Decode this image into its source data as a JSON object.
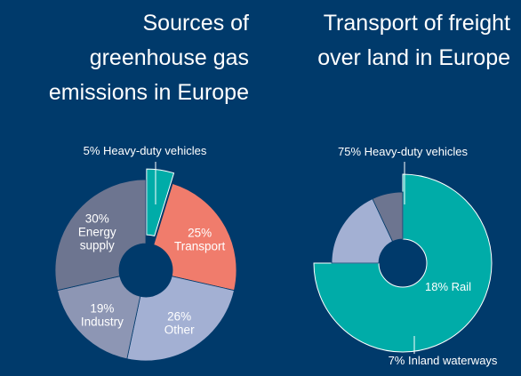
{
  "colors": {
    "background": "#003a6b",
    "heavy_duty": "#00aca8",
    "transport": "#f07c6c",
    "other": "#a3b0d3",
    "industry": "#8d96b4",
    "energy": "#6d7590",
    "rail": "#a3b0d3",
    "inland": "#6d7590",
    "text": "#ffffff"
  },
  "chart_data": [
    {
      "type": "pie",
      "title": "Sources of greenhouse gas emissions in Europe",
      "slices": [
        {
          "label": "Heavy-duty vehicles",
          "value": 5,
          "text": "5% Heavy-duty vehicles",
          "color": "#00aca8"
        },
        {
          "label": "Transport",
          "value": 25,
          "text_lines": [
            "25%",
            "Transport"
          ],
          "color": "#f07c6c"
        },
        {
          "label": "Other",
          "value": 26,
          "text_lines": [
            "26%",
            "Other"
          ],
          "color": "#a3b0d3"
        },
        {
          "label": "Industry",
          "value": 19,
          "text_lines": [
            "19%",
            "Industry"
          ],
          "color": "#8d96b4"
        },
        {
          "label": "Energy supply",
          "value": 30,
          "text_lines": [
            "30%",
            "Energy",
            "supply"
          ],
          "color": "#6d7590"
        }
      ]
    },
    {
      "type": "pie",
      "title": "Transport of freight over land in Europe",
      "slices": [
        {
          "label": "Heavy-duty vehicles",
          "value": 75,
          "text": "75% Heavy-duty vehicles",
          "color": "#00aca8"
        },
        {
          "label": "Rail",
          "value": 18,
          "text": "18% Rail",
          "color": "#a3b0d3"
        },
        {
          "label": "Inland waterways",
          "value": 7,
          "text": "7% Inland waterways",
          "color": "#6d7590"
        }
      ]
    }
  ]
}
